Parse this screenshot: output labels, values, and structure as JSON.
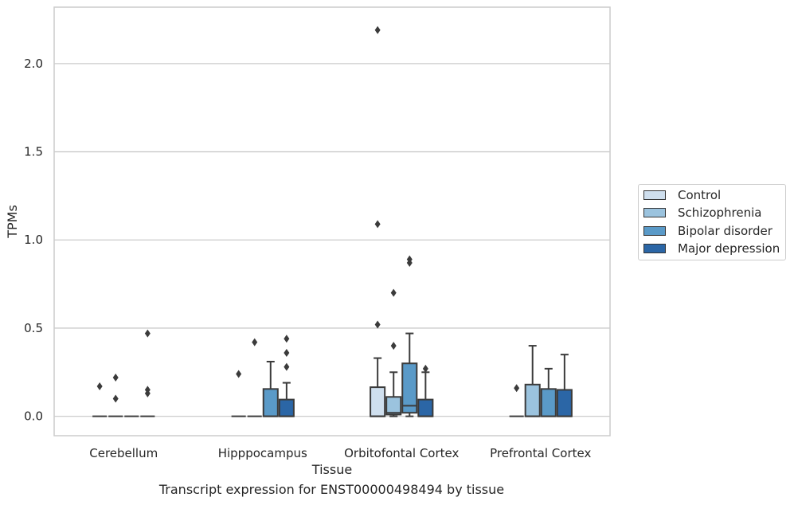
{
  "caption": "Transcript expression for ENST00000498494 by tissue",
  "chart_data": {
    "type": "box",
    "xlabel": "Tissue",
    "ylabel": "TPMs",
    "ylim": [
      -0.11,
      2.32
    ],
    "yticks": [
      "0.0",
      "0.5",
      "1.0",
      "1.5",
      "2.0"
    ],
    "grid": "horizontal",
    "legend_position": "right",
    "categories": [
      "Cerebellum",
      "Hipppocampus",
      "Orbitofontal Cortex",
      "Prefrontal Cortex"
    ],
    "series": [
      {
        "name": "Control",
        "color": "#cfdfee",
        "boxes": [
          {
            "q1": 0,
            "median": 0,
            "q3": 0,
            "whisker_low": 0,
            "whisker_high": 0,
            "outliers": [
              0.17
            ]
          },
          {
            "q1": 0,
            "median": 0,
            "q3": 0,
            "whisker_low": 0,
            "whisker_high": 0,
            "outliers": [
              0.24
            ]
          },
          {
            "q1": 0,
            "median": 0,
            "q3": 0.165,
            "whisker_low": 0,
            "whisker_high": 0.33,
            "outliers": [
              0.52,
              1.09,
              2.19
            ]
          },
          {
            "q1": 0,
            "median": 0,
            "q3": 0,
            "whisker_low": 0,
            "whisker_high": 0,
            "outliers": [
              0.16
            ]
          }
        ]
      },
      {
        "name": "Schizophrenia",
        "color": "#9bc3de",
        "boxes": [
          {
            "q1": 0,
            "median": 0,
            "q3": 0,
            "whisker_low": 0,
            "whisker_high": 0,
            "outliers": [
              0.1,
              0.22
            ]
          },
          {
            "q1": 0,
            "median": 0,
            "q3": 0,
            "whisker_low": 0,
            "whisker_high": 0,
            "outliers": [
              0.42
            ]
          },
          {
            "q1": 0.01,
            "median": 0.02,
            "q3": 0.11,
            "whisker_low": 0,
            "whisker_high": 0.25,
            "outliers": [
              0.4,
              0.7
            ]
          },
          {
            "q1": 0,
            "median": 0,
            "q3": 0.18,
            "whisker_low": 0,
            "whisker_high": 0.4,
            "outliers": []
          }
        ]
      },
      {
        "name": "Bipolar disorder",
        "color": "#5a9ac8",
        "boxes": [
          {
            "q1": 0,
            "median": 0,
            "q3": 0,
            "whisker_low": 0,
            "whisker_high": 0,
            "outliers": []
          },
          {
            "q1": 0,
            "median": 0,
            "q3": 0.155,
            "whisker_low": 0,
            "whisker_high": 0.31,
            "outliers": []
          },
          {
            "q1": 0.02,
            "median": 0.06,
            "q3": 0.3,
            "whisker_low": 0,
            "whisker_high": 0.47,
            "outliers": [
              0.87,
              0.89
            ]
          },
          {
            "q1": 0,
            "median": 0,
            "q3": 0.155,
            "whisker_low": 0,
            "whisker_high": 0.27,
            "outliers": []
          }
        ]
      },
      {
        "name": "Major depression",
        "color": "#2b66a6",
        "boxes": [
          {
            "q1": 0,
            "median": 0,
            "q3": 0,
            "whisker_low": 0,
            "whisker_high": 0,
            "outliers": [
              0.13,
              0.15,
              0.47
            ]
          },
          {
            "q1": 0,
            "median": 0,
            "q3": 0.095,
            "whisker_low": 0,
            "whisker_high": 0.19,
            "outliers": [
              0.28,
              0.36,
              0.44
            ]
          },
          {
            "q1": 0,
            "median": 0,
            "q3": 0.095,
            "whisker_low": 0,
            "whisker_high": 0.25,
            "outliers": [
              0.27
            ]
          },
          {
            "q1": 0,
            "median": 0,
            "q3": 0.15,
            "whisker_low": 0,
            "whisker_high": 0.35,
            "outliers": []
          }
        ]
      }
    ]
  }
}
